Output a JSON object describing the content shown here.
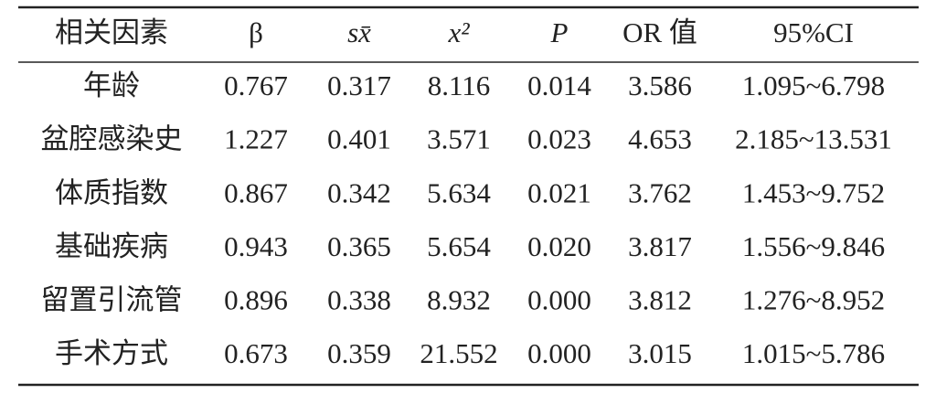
{
  "table": {
    "header": [
      "相关因素",
      "β",
      "sx̄",
      "x²",
      "P",
      "OR 值",
      "95%CI"
    ],
    "rows": [
      [
        "年龄",
        "0.767",
        "0.317",
        "8.116",
        "0.014",
        "3.586",
        "1.095~6.798"
      ],
      [
        "盆腔感染史",
        "1.227",
        "0.401",
        "3.571",
        "0.023",
        "4.653",
        "2.185~13.531"
      ],
      [
        "体质指数",
        "0.867",
        "0.342",
        "5.634",
        "0.021",
        "3.762",
        "1.453~9.752"
      ],
      [
        "基础疾病",
        "0.943",
        "0.365",
        "5.654",
        "0.020",
        "3.817",
        "1.556~9.846"
      ],
      [
        "留置引流管",
        "0.896",
        "0.338",
        "8.932",
        "0.000",
        "3.812",
        "1.276~8.952"
      ],
      [
        "手术方式",
        "0.673",
        "0.359",
        "21.552",
        "0.000",
        "3.015",
        "1.015~5.786"
      ]
    ]
  }
}
